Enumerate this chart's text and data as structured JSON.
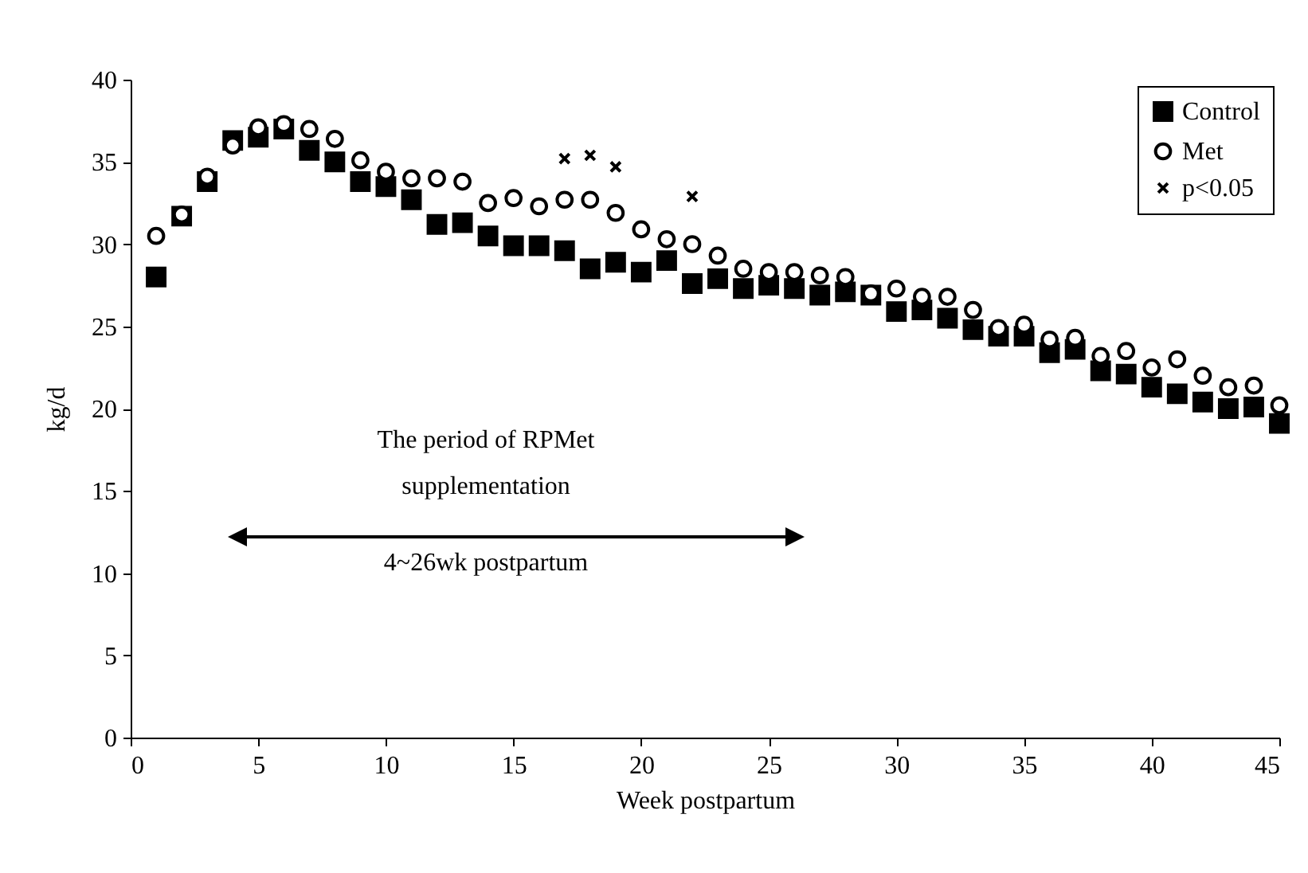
{
  "chart_data": {
    "type": "scatter",
    "xlabel": "Week postpartum",
    "ylabel": "kg/d",
    "x": [
      1,
      2,
      3,
      4,
      5,
      6,
      7,
      8,
      9,
      10,
      11,
      12,
      13,
      14,
      15,
      16,
      17,
      18,
      19,
      20,
      21,
      22,
      23,
      24,
      25,
      26,
      27,
      28,
      29,
      30,
      31,
      32,
      33,
      34,
      35,
      36,
      37,
      38,
      39,
      40,
      41,
      42,
      43,
      44,
      45
    ],
    "series": [
      {
        "name": "Control",
        "color": "#000000",
        "marker": "square",
        "values": [
          28.0,
          31.7,
          33.8,
          36.3,
          36.5,
          37.0,
          35.7,
          35.0,
          33.8,
          33.5,
          32.7,
          31.2,
          31.3,
          30.5,
          29.9,
          29.9,
          29.6,
          28.5,
          28.9,
          28.3,
          29.0,
          27.6,
          27.9,
          27.3,
          27.5,
          27.3,
          26.9,
          27.1,
          26.9,
          25.9,
          26.0,
          25.5,
          24.8,
          24.4,
          24.4,
          23.4,
          23.6,
          22.3,
          22.1,
          21.3,
          20.9,
          20.4,
          20.0,
          20.1,
          19.1
        ]
      },
      {
        "name": "Met",
        "color": "#000000",
        "marker": "circle",
        "values": [
          30.5,
          31.8,
          34.1,
          36.0,
          37.1,
          37.3,
          37.0,
          36.4,
          35.1,
          34.4,
          34.0,
          34.0,
          33.8,
          32.5,
          32.8,
          32.3,
          32.7,
          32.7,
          31.9,
          30.9,
          30.3,
          30.0,
          29.3,
          28.5,
          28.3,
          28.3,
          28.1,
          28.0,
          27.0,
          27.3,
          26.8,
          26.8,
          26.0,
          24.9,
          25.1,
          24.2,
          24.3,
          23.2,
          23.5,
          22.5,
          23.0,
          22.0,
          21.3,
          21.4,
          20.2
        ]
      },
      {
        "name": "p<0.05",
        "color": "#000000",
        "marker": "cross",
        "x": [
          17,
          18,
          19,
          22
        ],
        "values": [
          35.2,
          35.4,
          34.7,
          32.9
        ]
      }
    ],
    "xlim": [
      0,
      45
    ],
    "xticks": [
      0,
      5,
      10,
      15,
      20,
      25,
      30,
      35,
      40,
      45
    ],
    "ylim": [
      0,
      40
    ],
    "yticks": [
      0,
      5,
      10,
      15,
      20,
      25,
      30,
      35,
      40
    ],
    "grid": false,
    "legend": "top right",
    "annotations": [
      "The period of RPMet",
      "supplementation",
      "4~26wk postpartum"
    ]
  }
}
